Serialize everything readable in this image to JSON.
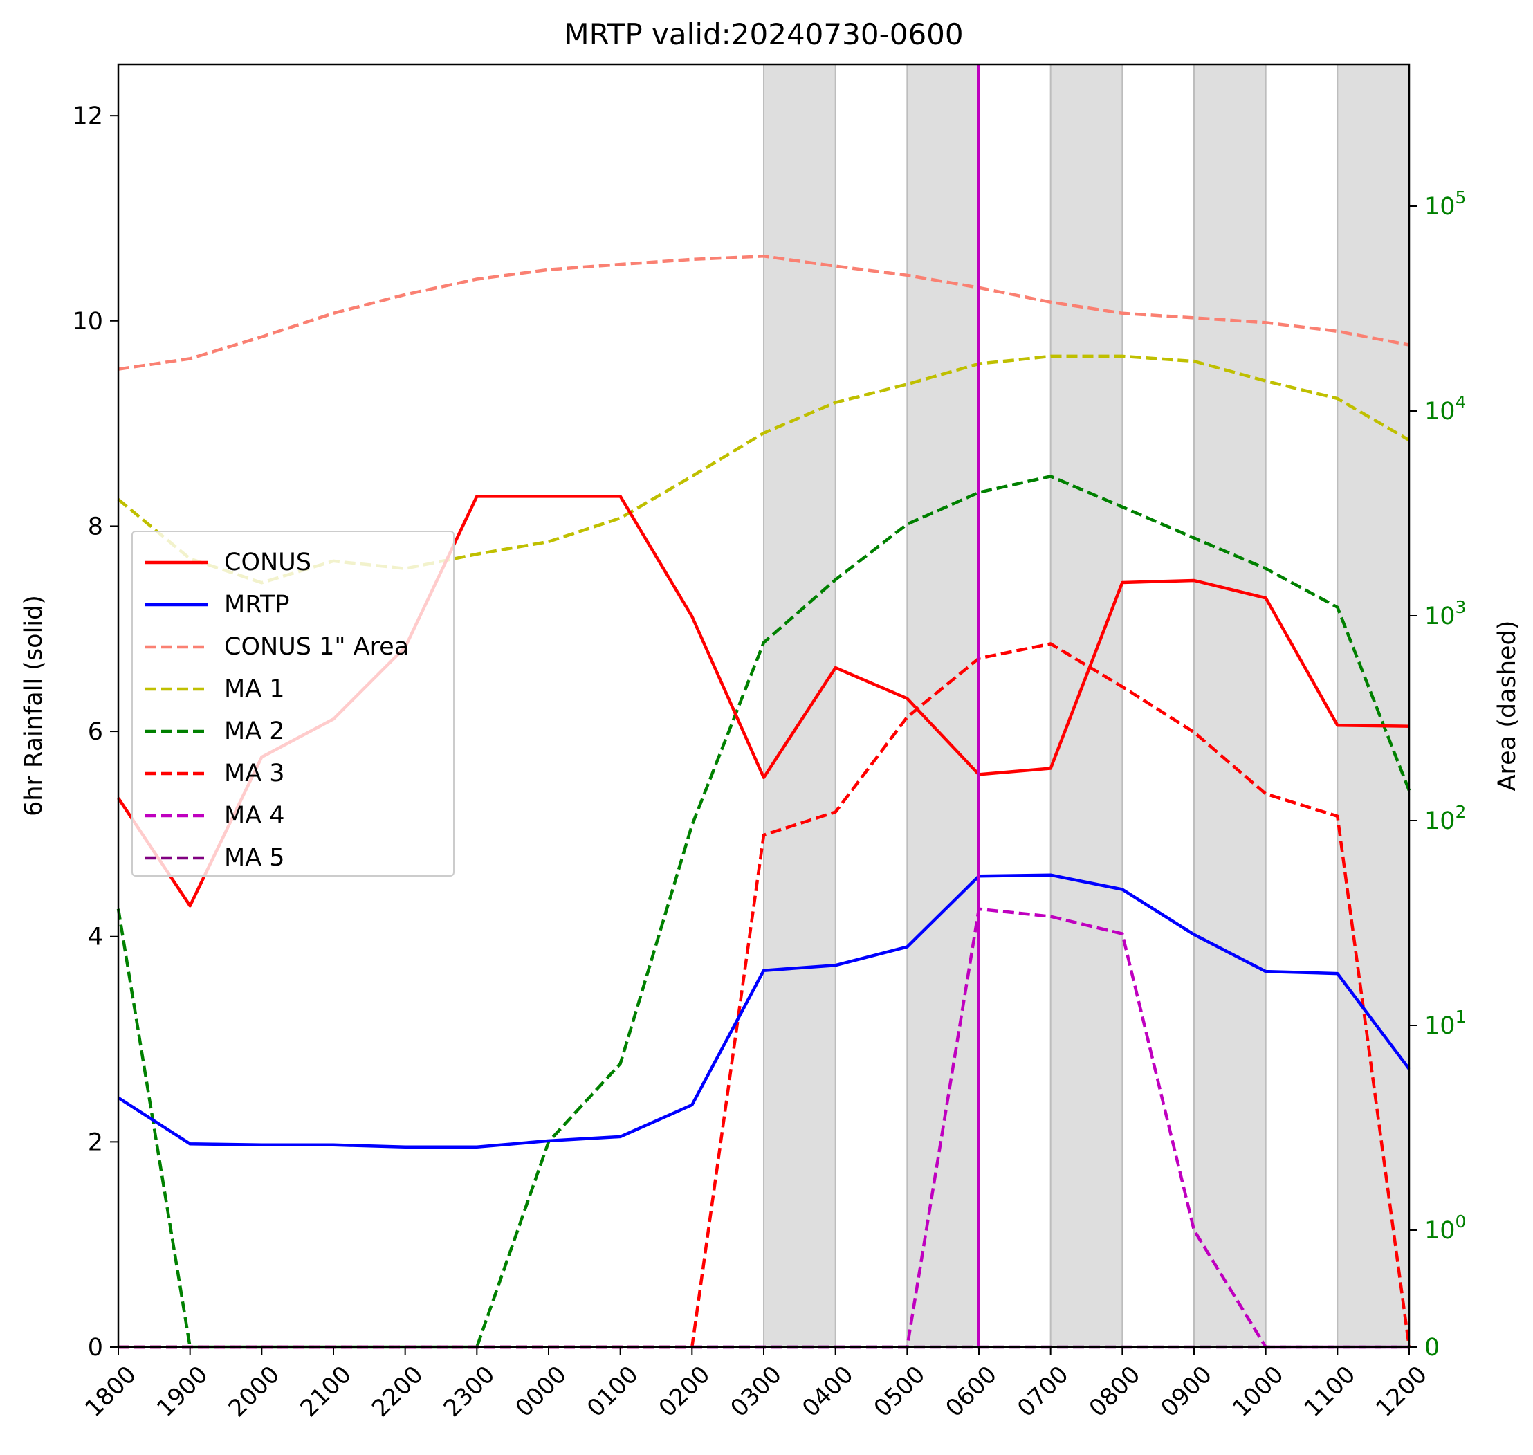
{
  "chart_data": {
    "type": "line",
    "title": "MRTP valid:20240730-0600",
    "ylabel": "6hr Rainfall (solid)",
    "ylabel_right": "Area (dashed)",
    "categories": [
      "1800",
      "1900",
      "2000",
      "2100",
      "2200",
      "2300",
      "0000",
      "0100",
      "0200",
      "0300",
      "0400",
      "0500",
      "0600",
      "0700",
      "0800",
      "0900",
      "1000",
      "1100",
      "1200"
    ],
    "ylim": [
      0,
      12.5
    ],
    "yticks": [
      0,
      2,
      4,
      6,
      8,
      10,
      12
    ],
    "y2_scale": "symlog",
    "y2_ticks": [
      {
        "value": 0,
        "base": "0",
        "exp": ""
      },
      {
        "value": 1,
        "base": "10",
        "exp": "0"
      },
      {
        "value": 10,
        "base": "10",
        "exp": "1"
      },
      {
        "value": 100,
        "base": "10",
        "exp": "2"
      },
      {
        "value": 1000,
        "base": "10",
        "exp": "3"
      },
      {
        "value": 10000,
        "base": "10",
        "exp": "4"
      },
      {
        "value": 100000,
        "base": "10",
        "exp": "5"
      }
    ],
    "y2_color": "#008000",
    "shaded_x_ranges": [
      [
        "0300",
        "0400"
      ],
      [
        "0500",
        "0600"
      ],
      [
        "0700",
        "0800"
      ],
      [
        "0900",
        "1000"
      ],
      [
        "1100",
        "1200"
      ]
    ],
    "valid_time_marker": {
      "x": "0600",
      "color": "#bf00bf"
    },
    "grid": false,
    "legend_position": "center-left",
    "series": [
      {
        "name": "CONUS",
        "axis": "left",
        "style": "solid",
        "color": "#ff0000",
        "values": [
          5.35,
          4.3,
          5.75,
          6.12,
          6.82,
          8.29,
          8.29,
          8.29,
          7.12,
          5.55,
          6.62,
          6.32,
          5.58,
          5.64,
          7.45,
          7.47,
          7.3,
          6.06,
          6.05
        ]
      },
      {
        "name": "MRTP",
        "axis": "left",
        "style": "solid",
        "color": "#0000ff",
        "values": [
          2.43,
          1.98,
          1.97,
          1.97,
          1.95,
          1.95,
          2.01,
          2.05,
          2.36,
          3.67,
          3.72,
          3.9,
          4.59,
          4.6,
          4.46,
          4.02,
          3.66,
          3.64,
          2.71
        ]
      },
      {
        "name": "CONUS 1\" Area",
        "axis": "right",
        "style": "dashed",
        "color": "#fa8072",
        "values": [
          16000,
          18000,
          23000,
          30000,
          37000,
          44000,
          49000,
          52000,
          55000,
          57000,
          51000,
          46000,
          40000,
          34000,
          30000,
          28500,
          27000,
          24500,
          21000
        ]
      },
      {
        "name": "MA 1",
        "axis": "right",
        "style": "dashed",
        "color": "#bfbf00",
        "values": [
          3700,
          1900,
          1450,
          1850,
          1700,
          2000,
          2300,
          3000,
          4800,
          7800,
          11000,
          13500,
          17000,
          18500,
          18500,
          17500,
          14000,
          11500,
          7200
        ]
      },
      {
        "name": "MA 2",
        "axis": "right",
        "style": "dashed",
        "color": "#008000",
        "values": [
          37,
          0,
          0,
          0,
          0,
          0,
          2.7,
          6.5,
          95,
          740,
          1500,
          2800,
          4000,
          4800,
          3400,
          2400,
          1700,
          1100,
          140
        ]
      },
      {
        "name": "MA 3",
        "axis": "right",
        "style": "dashed",
        "color": "#ff0000",
        "values": [
          0,
          0,
          0,
          0,
          0,
          0,
          0,
          0,
          0,
          85,
          110,
          320,
          620,
          730,
          450,
          270,
          135,
          105,
          0
        ]
      },
      {
        "name": "MA 4",
        "axis": "right",
        "style": "dashed",
        "color": "#bf00bf",
        "values": [
          0,
          0,
          0,
          0,
          0,
          0,
          0,
          0,
          0,
          0,
          0,
          0,
          37,
          34,
          28,
          1,
          0,
          0,
          0
        ]
      },
      {
        "name": "MA 5",
        "axis": "right",
        "style": "dashed",
        "color": "#800080",
        "values": [
          0,
          0,
          0,
          0,
          0,
          0,
          0,
          0,
          0,
          0,
          0,
          0,
          0,
          0,
          0,
          0,
          0,
          0,
          0
        ]
      }
    ]
  }
}
